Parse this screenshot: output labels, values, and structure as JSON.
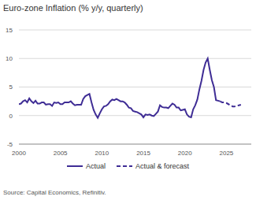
{
  "chart_data": {
    "type": "line",
    "title": "Euro-zone Inflation (% y/y, quarterly)",
    "source": "Source: Capital Economics, Refinitiv.",
    "x": [
      2000,
      2000.25,
      2000.5,
      2000.75,
      2001,
      2001.25,
      2001.5,
      2001.75,
      2002,
      2002.25,
      2002.5,
      2002.75,
      2003,
      2003.25,
      2003.5,
      2003.75,
      2004,
      2004.25,
      2004.5,
      2004.75,
      2005,
      2005.25,
      2005.5,
      2005.75,
      2006,
      2006.25,
      2006.5,
      2006.75,
      2007,
      2007.25,
      2007.5,
      2007.75,
      2008,
      2008.25,
      2008.5,
      2008.75,
      2009,
      2009.25,
      2009.5,
      2009.75,
      2010,
      2010.25,
      2010.5,
      2010.75,
      2011,
      2011.25,
      2011.5,
      2011.75,
      2012,
      2012.25,
      2012.5,
      2012.75,
      2013,
      2013.25,
      2013.5,
      2013.75,
      2014,
      2014.25,
      2014.5,
      2014.75,
      2015,
      2015.25,
      2015.5,
      2015.75,
      2016,
      2016.25,
      2016.5,
      2016.75,
      2017,
      2017.25,
      2017.5,
      2017.75,
      2018,
      2018.25,
      2018.5,
      2018.75,
      2019,
      2019.25,
      2019.5,
      2019.75,
      2020,
      2020.25,
      2020.5,
      2020.75,
      2021,
      2021.25,
      2021.5,
      2021.75,
      2022,
      2022.25,
      2022.5,
      2022.75,
      2023,
      2023.25,
      2023.5,
      2023.75,
      2024,
      2024.25,
      2024.5,
      2024.75,
      2025,
      2025.25,
      2025.5,
      2025.75,
      2026,
      2026.25,
      2026.5,
      2026.75
    ],
    "series": [
      {
        "name": "Actual",
        "color": "#3f2d95",
        "line_style": "solid",
        "values": [
          2.0,
          2.1,
          2.5,
          2.7,
          2.3,
          3.0,
          2.5,
          2.2,
          2.6,
          2.1,
          2.1,
          2.3,
          2.3,
          1.9,
          2.0,
          2.0,
          1.7,
          2.3,
          2.2,
          2.3,
          2.0,
          2.0,
          2.3,
          2.3,
          2.3,
          2.5,
          2.1,
          1.8,
          1.9,
          1.9,
          1.9,
          2.9,
          3.4,
          3.6,
          3.8,
          2.3,
          1.0,
          0.2,
          -0.4,
          0.4,
          1.1,
          1.6,
          1.7,
          2.0,
          2.5,
          2.8,
          2.7,
          2.9,
          2.7,
          2.5,
          2.5,
          2.3,
          1.9,
          1.4,
          1.3,
          0.8,
          0.7,
          0.6,
          0.4,
          0.2,
          -0.3,
          0.2,
          0.1,
          0.2,
          0.0,
          -0.1,
          0.3,
          0.7,
          1.8,
          1.5,
          1.4,
          1.4,
          1.3,
          1.7,
          2.1,
          1.9,
          1.4,
          1.4,
          0.9,
          1.0,
          1.1,
          0.2,
          -0.2,
          -0.3,
          1.1,
          1.8,
          2.8,
          4.6,
          6.1,
          8.0,
          9.3,
          10.0,
          8.0,
          6.2,
          5.0,
          2.7,
          2.6,
          2.5,
          null,
          null,
          null,
          null,
          null,
          null,
          null,
          null,
          null,
          null
        ]
      },
      {
        "name": "Actual & forecast",
        "color": "#3f2d95",
        "line_style": "dashed",
        "values": [
          null,
          null,
          null,
          null,
          null,
          null,
          null,
          null,
          null,
          null,
          null,
          null,
          null,
          null,
          null,
          null,
          null,
          null,
          null,
          null,
          null,
          null,
          null,
          null,
          null,
          null,
          null,
          null,
          null,
          null,
          null,
          null,
          null,
          null,
          null,
          null,
          null,
          null,
          null,
          null,
          null,
          null,
          null,
          null,
          null,
          null,
          null,
          null,
          null,
          null,
          null,
          null,
          null,
          null,
          null,
          null,
          null,
          null,
          null,
          null,
          null,
          null,
          null,
          null,
          null,
          null,
          null,
          null,
          null,
          null,
          null,
          null,
          null,
          null,
          null,
          null,
          null,
          null,
          null,
          null,
          null,
          null,
          null,
          null,
          null,
          null,
          null,
          null,
          null,
          null,
          null,
          null,
          null,
          null,
          null,
          null,
          null,
          2.5,
          2.3,
          2.3,
          2.2,
          2.0,
          1.8,
          1.6,
          1.6,
          1.7,
          1.8,
          1.9
        ]
      }
    ],
    "xlim": [
      2000,
      2028
    ],
    "xticks": [
      2000,
      2005,
      2010,
      2015,
      2020,
      2025
    ],
    "ylim": [
      -5,
      15
    ],
    "yticks": [
      -5,
      0,
      5,
      10,
      15
    ],
    "grid": true,
    "legend": "bottom"
  }
}
